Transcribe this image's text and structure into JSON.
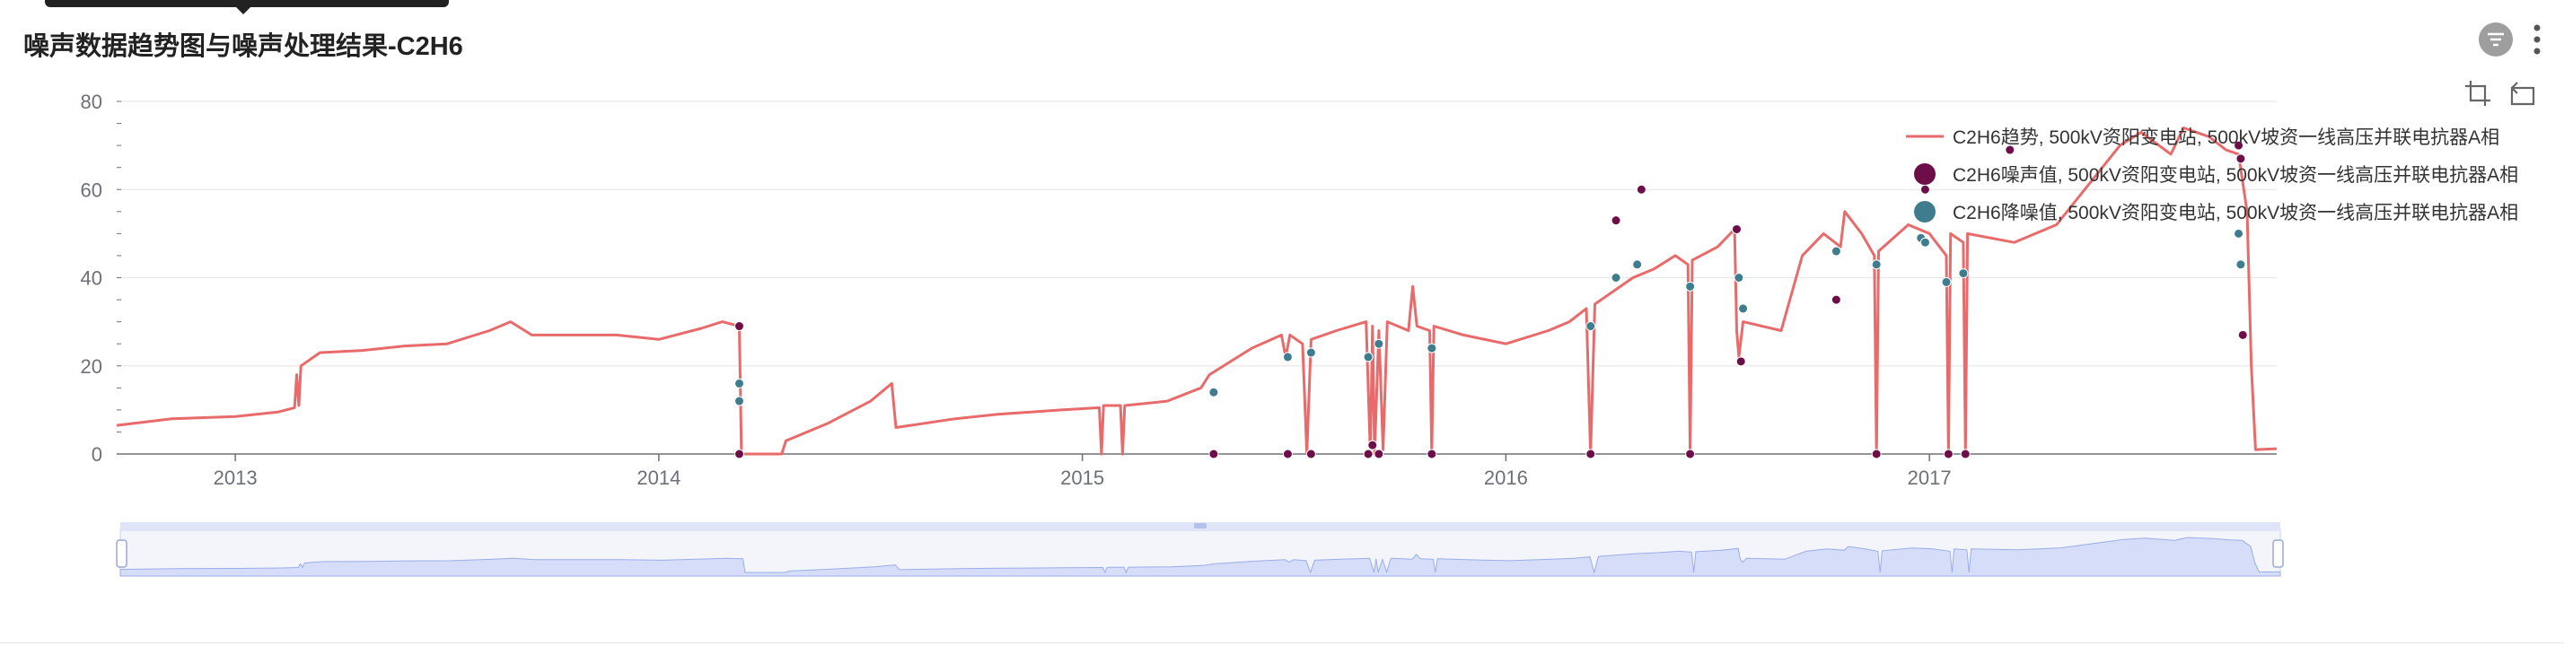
{
  "page_title": "噪声数据趋势图与噪声处理结果-C2H6",
  "toolbar": {
    "filter_icon": "filter-icon",
    "more_icon": "more-vertical-icon",
    "zoom_icon": "data-zoom-icon",
    "restore_icon": "zoom-restore-icon"
  },
  "colors": {
    "trend": "#e86a6a",
    "noise": "#6d0e49",
    "denoise": "#3f7d8e",
    "grid": "#e8e8e8",
    "axis": "#6e7079",
    "zoom_fill": "#d6ddf8",
    "zoom_border": "#c9d3f5"
  },
  "chart_data": {
    "type": "line",
    "x_ticks": [
      "2013",
      "2014",
      "2015",
      "2016",
      "2017"
    ],
    "y_ticks": [
      "0",
      "20",
      "40",
      "60",
      "80"
    ],
    "ylim": [
      0,
      80
    ],
    "xlim": [
      2012.72,
      2017.82
    ],
    "grid": true,
    "legend_position": "top-right",
    "series": [
      {
        "name": "C2H6趋势, 500kV资阳变电站, 500kV坡资一线高压并联电抗器A相",
        "kind": "line",
        "points": [
          [
            2012.72,
            6.5
          ],
          [
            2012.85,
            8.0
          ],
          [
            2013.0,
            8.5
          ],
          [
            2013.1,
            9.5
          ],
          [
            2013.14,
            10.5
          ],
          [
            2013.145,
            18
          ],
          [
            2013.15,
            11
          ],
          [
            2013.155,
            20
          ],
          [
            2013.2,
            23
          ],
          [
            2013.3,
            23.5
          ],
          [
            2013.4,
            24.5
          ],
          [
            2013.5,
            25
          ],
          [
            2013.6,
            28
          ],
          [
            2013.65,
            30
          ],
          [
            2013.7,
            27
          ],
          [
            2013.8,
            27
          ],
          [
            2013.9,
            27
          ],
          [
            2014.0,
            26
          ],
          [
            2014.1,
            28.5
          ],
          [
            2014.15,
            30
          ],
          [
            2014.19,
            29
          ],
          [
            2014.195,
            0
          ],
          [
            2014.29,
            0
          ],
          [
            2014.3,
            3
          ],
          [
            2014.4,
            7
          ],
          [
            2014.5,
            12
          ],
          [
            2014.55,
            16
          ],
          [
            2014.56,
            6
          ],
          [
            2014.7,
            8
          ],
          [
            2014.8,
            9
          ],
          [
            2014.95,
            10
          ],
          [
            2015.04,
            10.5
          ],
          [
            2015.045,
            0
          ],
          [
            2015.05,
            11
          ],
          [
            2015.09,
            11
          ],
          [
            2015.095,
            0
          ],
          [
            2015.1,
            11
          ],
          [
            2015.2,
            12
          ],
          [
            2015.28,
            15
          ],
          [
            2015.3,
            18
          ],
          [
            2015.4,
            24
          ],
          [
            2015.47,
            27
          ],
          [
            2015.48,
            22
          ],
          [
            2015.49,
            27
          ],
          [
            2015.52,
            25
          ],
          [
            2015.53,
            0
          ],
          [
            2015.54,
            26
          ],
          [
            2015.6,
            28
          ],
          [
            2015.67,
            30
          ],
          [
            2015.68,
            0
          ],
          [
            2015.685,
            29
          ],
          [
            2015.69,
            0
          ],
          [
            2015.7,
            28
          ],
          [
            2015.71,
            1
          ],
          [
            2015.72,
            30
          ],
          [
            2015.77,
            28
          ],
          [
            2015.78,
            38
          ],
          [
            2015.79,
            29
          ],
          [
            2015.82,
            28
          ],
          [
            2015.825,
            0
          ],
          [
            2015.83,
            29
          ],
          [
            2015.9,
            27
          ],
          [
            2016.0,
            25
          ],
          [
            2016.1,
            28
          ],
          [
            2016.15,
            30
          ],
          [
            2016.19,
            33
          ],
          [
            2016.2,
            0
          ],
          [
            2016.21,
            34
          ],
          [
            2016.3,
            40
          ],
          [
            2016.35,
            42
          ],
          [
            2016.4,
            45
          ],
          [
            2016.43,
            43
          ],
          [
            2016.435,
            0
          ],
          [
            2016.44,
            44
          ],
          [
            2016.5,
            47
          ],
          [
            2016.54,
            51
          ],
          [
            2016.545,
            28
          ],
          [
            2016.55,
            22
          ],
          [
            2016.56,
            30
          ],
          [
            2016.65,
            28
          ],
          [
            2016.7,
            45
          ],
          [
            2016.75,
            50
          ],
          [
            2016.79,
            47
          ],
          [
            2016.8,
            55
          ],
          [
            2016.84,
            50
          ],
          [
            2016.87,
            45
          ],
          [
            2016.875,
            0
          ],
          [
            2016.88,
            46
          ],
          [
            2016.95,
            52
          ],
          [
            2017.0,
            50
          ],
          [
            2017.04,
            45
          ],
          [
            2017.045,
            0
          ],
          [
            2017.05,
            50
          ],
          [
            2017.08,
            48
          ],
          [
            2017.085,
            0
          ],
          [
            2017.09,
            50
          ],
          [
            2017.2,
            48
          ],
          [
            2017.3,
            52
          ],
          [
            2017.45,
            70
          ],
          [
            2017.5,
            73
          ],
          [
            2017.57,
            68
          ],
          [
            2017.6,
            74
          ],
          [
            2017.66,
            72
          ],
          [
            2017.7,
            69
          ],
          [
            2017.73,
            68
          ],
          [
            2017.75,
            55
          ],
          [
            2017.76,
            20
          ],
          [
            2017.77,
            1
          ],
          [
            2017.82,
            1.2
          ]
        ]
      },
      {
        "name": "C2H6噪声值, 500kV资阳变电站, 500kV坡资一线高压并联电抗器A相",
        "kind": "scatter",
        "points": [
          [
            2014.19,
            29
          ],
          [
            2014.19,
            0
          ],
          [
            2015.31,
            0
          ],
          [
            2015.485,
            0
          ],
          [
            2015.54,
            0
          ],
          [
            2015.675,
            0
          ],
          [
            2015.685,
            2
          ],
          [
            2015.7,
            0
          ],
          [
            2015.825,
            0
          ],
          [
            2016.2,
            0
          ],
          [
            2016.26,
            53
          ],
          [
            2016.32,
            60
          ],
          [
            2016.435,
            0
          ],
          [
            2016.545,
            51
          ],
          [
            2016.555,
            21
          ],
          [
            2016.78,
            35
          ],
          [
            2016.875,
            0
          ],
          [
            2016.98,
            63
          ],
          [
            2016.99,
            60
          ],
          [
            2017.045,
            0
          ],
          [
            2017.085,
            0
          ],
          [
            2017.19,
            69
          ],
          [
            2017.73,
            70
          ],
          [
            2017.735,
            67
          ],
          [
            2017.74,
            27
          ]
        ]
      },
      {
        "name": "C2H6降噪值, 500kV资阳变电站, 500kV坡资一线高压并联电抗器A相",
        "kind": "scatter",
        "points": [
          [
            2014.19,
            16
          ],
          [
            2014.19,
            12
          ],
          [
            2015.31,
            14
          ],
          [
            2015.485,
            22
          ],
          [
            2015.54,
            23
          ],
          [
            2015.675,
            22
          ],
          [
            2015.7,
            25
          ],
          [
            2015.825,
            24
          ],
          [
            2016.2,
            29
          ],
          [
            2016.26,
            40
          ],
          [
            2016.31,
            43
          ],
          [
            2016.435,
            38
          ],
          [
            2016.55,
            40
          ],
          [
            2016.56,
            33
          ],
          [
            2016.78,
            46
          ],
          [
            2016.875,
            43
          ],
          [
            2016.98,
            49
          ],
          [
            2016.99,
            48
          ],
          [
            2017.04,
            39
          ],
          [
            2017.08,
            41
          ],
          [
            2017.73,
            50
          ],
          [
            2017.735,
            43
          ]
        ]
      }
    ]
  }
}
